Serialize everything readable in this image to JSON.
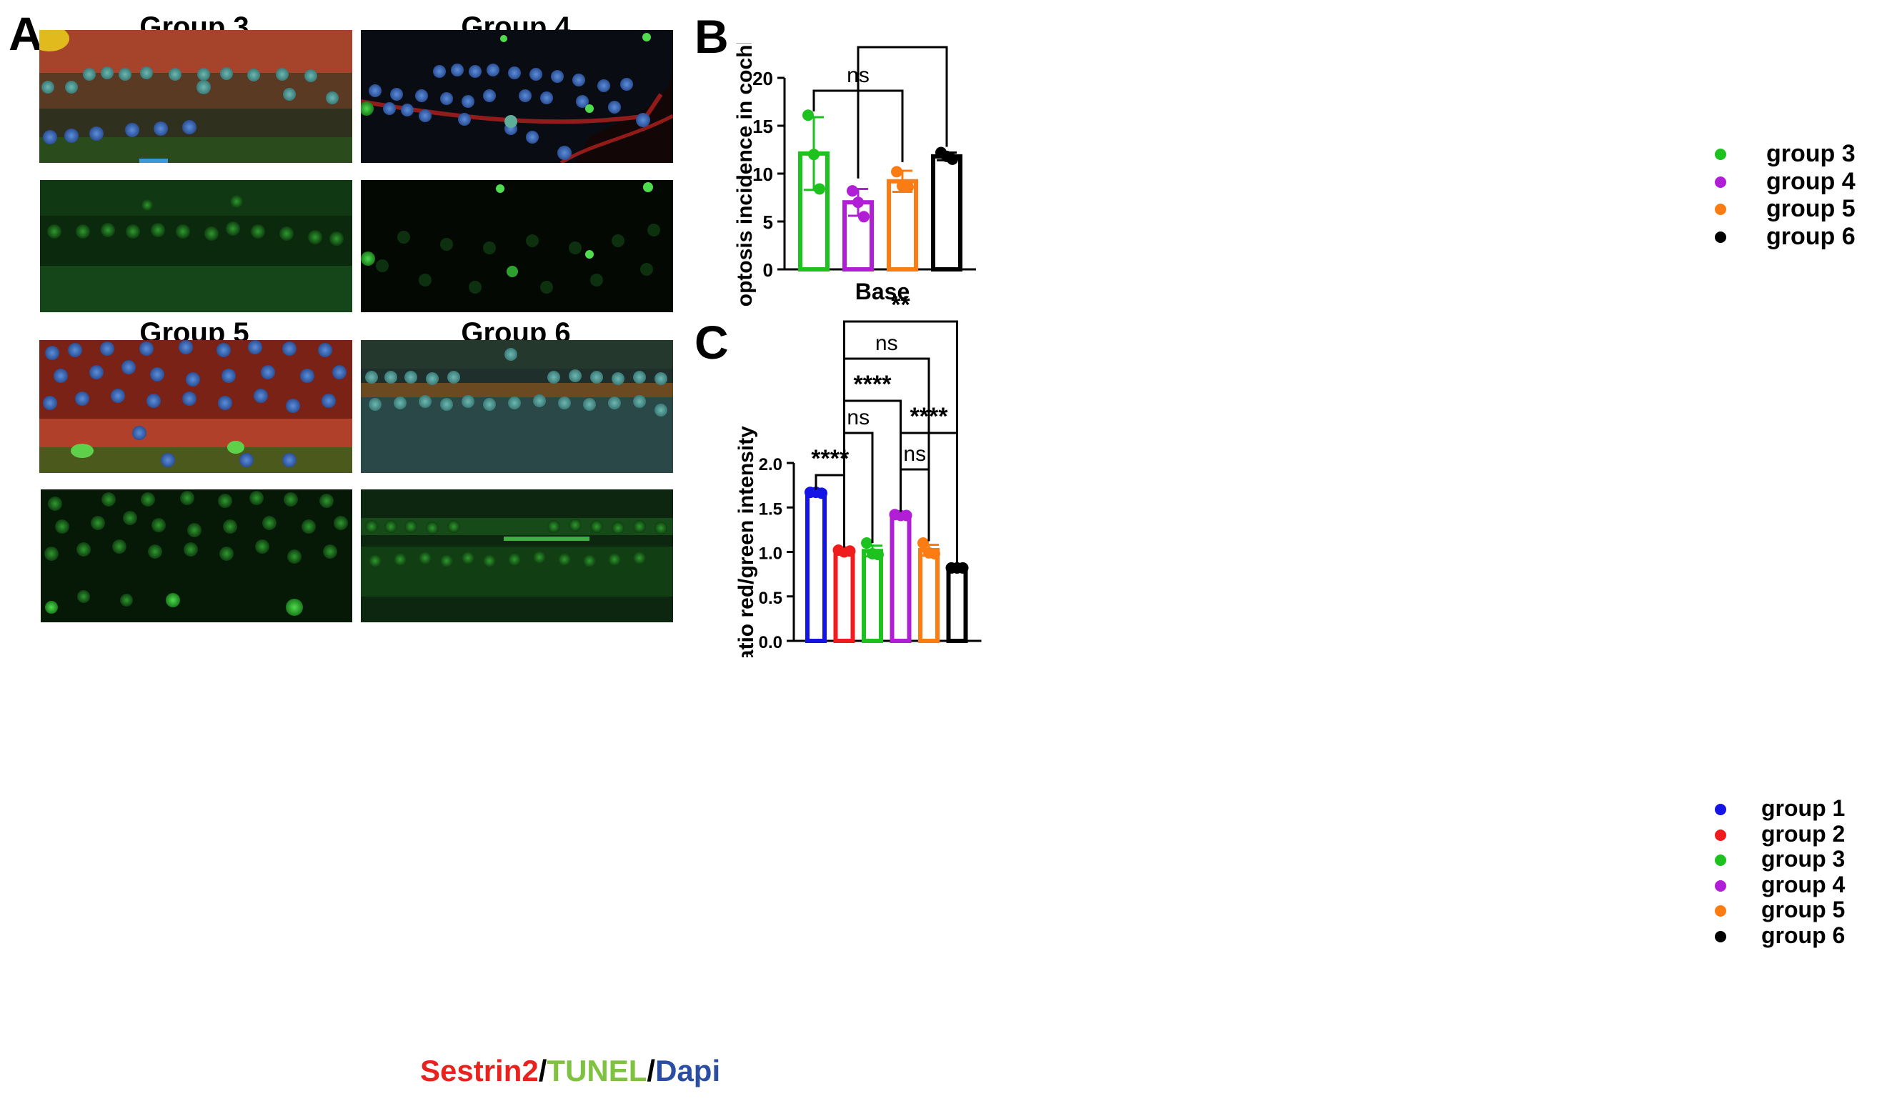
{
  "panel_a": {
    "letter": "A",
    "titles": {
      "group3": "Group 3",
      "group4": "Group 4",
      "group5": "Group 5",
      "group6": "Group 6"
    },
    "stain_legend": {
      "sestrin2": "Sestrin2",
      "slash1": "/",
      "tunel": "TUNEL",
      "slash2": "/",
      "dapi": "Dapi"
    },
    "stain_colors": {
      "sestrin2": "#e8231f",
      "tunel": "#7fc241",
      "dapi": "#2b4ea3"
    }
  },
  "chart_data": [
    {
      "id": "B",
      "letter": "B",
      "type": "bar",
      "categories": [
        "group 3",
        "group 4",
        "group 5",
        "group 6"
      ],
      "xlabel": "Base",
      "ylabel": "Apoptosis incidence in cochlea",
      "ylim": [
        0,
        20
      ],
      "yticks": [
        0,
        5,
        10,
        15,
        20
      ],
      "values": [
        12.1,
        7.0,
        9.2,
        11.8
      ],
      "errors": [
        3.8,
        1.4,
        1.1,
        0.4
      ],
      "points": [
        [
          16.1,
          12.0,
          8.4
        ],
        [
          8.2,
          7.0,
          5.5
        ],
        [
          10.2,
          8.7,
          8.6
        ],
        [
          12.2,
          11.8,
          11.5
        ]
      ],
      "colors": [
        "#1ec21e",
        "#b01fd6",
        "#fb7c12",
        "#000000"
      ],
      "legend": [
        "group 3",
        "group 4",
        "group 5",
        "group 6"
      ],
      "legend_position": "right",
      "significance": [
        {
          "from": 0,
          "to": 2,
          "label": "ns"
        },
        {
          "from": 1,
          "to": 3,
          "label": "***"
        }
      ]
    },
    {
      "id": "C",
      "letter": "C",
      "type": "bar",
      "categories": [
        "group 1",
        "group 2",
        "group 3",
        "group 4",
        "group 5",
        "group 6"
      ],
      "xlabel": "",
      "ylabel": "Ratio red/green intensity",
      "ylim": [
        0,
        2.0
      ],
      "yticks": [
        "0.0",
        "0.5",
        "1.0",
        "1.5",
        "2.0"
      ],
      "values": [
        1.67,
        1.01,
        1.01,
        1.41,
        1.02,
        0.82
      ],
      "errors": [
        0.01,
        0.01,
        0.06,
        0.01,
        0.06,
        0.01
      ],
      "points": [
        [
          1.67,
          1.67,
          1.66
        ],
        [
          1.02,
          1.0,
          1.01
        ],
        [
          1.1,
          0.98,
          0.97
        ],
        [
          1.42,
          1.41,
          1.41
        ],
        [
          1.1,
          0.99,
          0.98
        ],
        [
          0.82,
          0.82,
          0.82
        ]
      ],
      "colors": [
        "#1414e6",
        "#ee1c1c",
        "#1ec21e",
        "#b01fd6",
        "#fb7c12",
        "#000000"
      ],
      "legend": [
        "group 1",
        "group 2",
        "group 3",
        "group 4",
        "group 5",
        "group 6"
      ],
      "legend_position": "right",
      "significance": [
        {
          "from": 0,
          "to": 1,
          "label": "****"
        },
        {
          "from": 1,
          "to": 2,
          "label": "ns"
        },
        {
          "from": 3,
          "to": 4,
          "label": "ns"
        },
        {
          "from": 1,
          "to": 3,
          "label": "****"
        },
        {
          "from": 3,
          "to": 5,
          "label": "****"
        },
        {
          "from": 1,
          "to": 4,
          "label": "ns"
        },
        {
          "from": 1,
          "to": 5,
          "label": "**"
        }
      ]
    }
  ]
}
